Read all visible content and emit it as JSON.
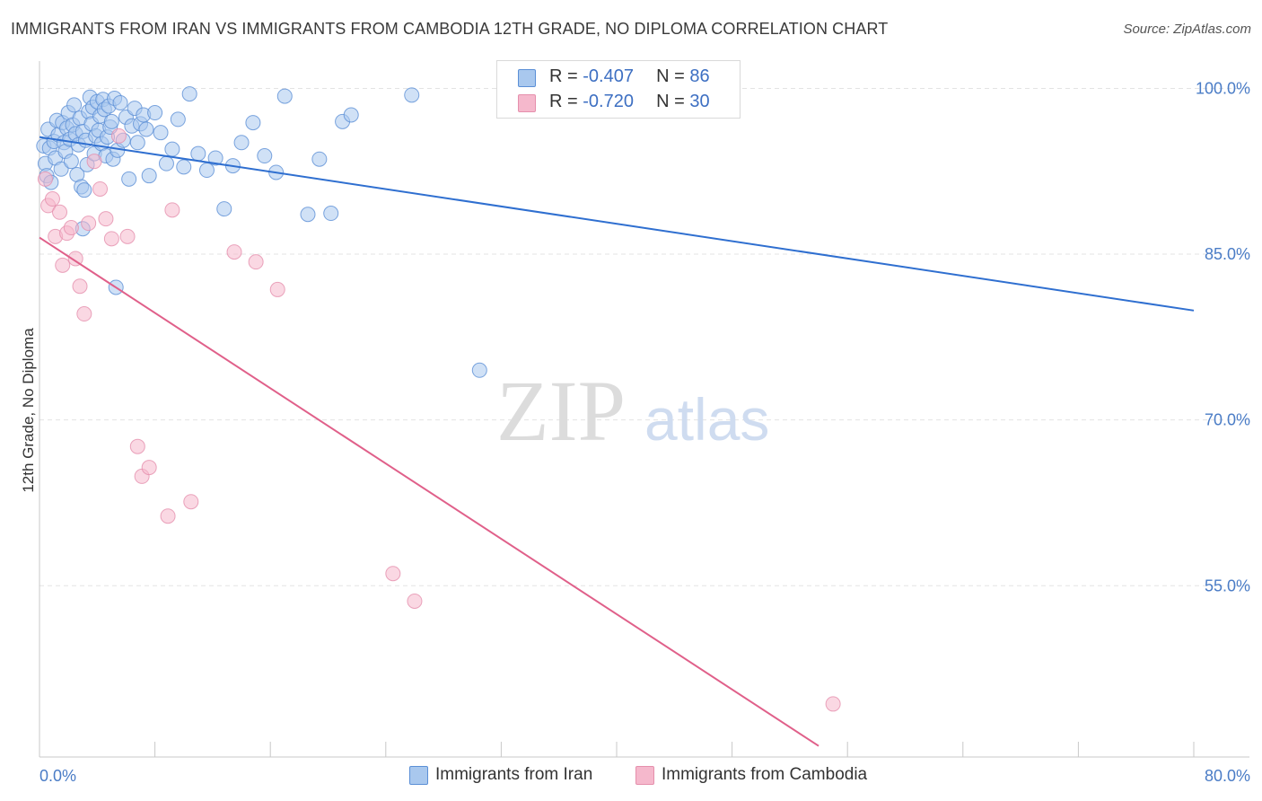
{
  "title": "IMMIGRANTS FROM IRAN VS IMMIGRANTS FROM CAMBODIA 12TH GRADE, NO DIPLOMA CORRELATION CHART",
  "source": "Source: ZipAtlas.com",
  "watermark": {
    "zip": "ZIP",
    "atlas": "atlas"
  },
  "stats": [
    {
      "r_label": "R =",
      "r_value": "-0.407",
      "n_label": "N =",
      "n_value": "86",
      "color": "#a9c8ee"
    },
    {
      "r_label": "R =",
      "r_value": "-0.720",
      "n_label": "N =",
      "n_value": "30",
      "color": "#f5b8cc"
    }
  ],
  "legend": [
    {
      "label": "Immigrants from Iran",
      "color": "#a9c8ee"
    },
    {
      "label": "Immigrants from Cambodia",
      "color": "#f5b8cc"
    }
  ],
  "chart_data": {
    "type": "scatter",
    "title": "IMMIGRANTS FROM IRAN VS IMMIGRANTS FROM CAMBODIA 12TH GRADE, NO DIPLOMA CORRELATION CHART",
    "xlabel": "",
    "ylabel": "12th Grade, No Diploma",
    "xlim": [
      0,
      80
    ],
    "ylim": [
      39.5,
      101.5
    ],
    "x_tick_labels": [
      "0.0%",
      "80.0%"
    ],
    "y_ticks": [
      100,
      85,
      70,
      55
    ],
    "y_tick_labels": [
      "100.0%",
      "85.0%",
      "70.0%",
      "55.0%"
    ],
    "grid": true,
    "legend_position": "bottom",
    "series": [
      {
        "name": "Immigrants from Iran",
        "color": "#a9c8ee",
        "stroke": "#5b8fd6",
        "trend_color": "#2f6fd0",
        "trend": [
          [
            0,
            95.6
          ],
          [
            80,
            79.9
          ]
        ],
        "points": [
          [
            0.3,
            94.8
          ],
          [
            0.4,
            93.2
          ],
          [
            0.5,
            92.1
          ],
          [
            0.6,
            96.3
          ],
          [
            0.7,
            94.6
          ],
          [
            0.8,
            91.5
          ],
          [
            1.0,
            95.2
          ],
          [
            1.1,
            93.7
          ],
          [
            1.2,
            97.1
          ],
          [
            1.3,
            95.8
          ],
          [
            1.5,
            92.7
          ],
          [
            1.6,
            96.9
          ],
          [
            1.7,
            95.1
          ],
          [
            1.8,
            94.3
          ],
          [
            1.9,
            96.4
          ],
          [
            2.0,
            97.8
          ],
          [
            2.1,
            95.4
          ],
          [
            2.2,
            93.4
          ],
          [
            2.3,
            96.7
          ],
          [
            2.4,
            98.5
          ],
          [
            2.5,
            95.9
          ],
          [
            2.6,
            92.2
          ],
          [
            2.7,
            94.9
          ],
          [
            2.8,
            97.3
          ],
          [
            2.9,
            91.1
          ],
          [
            3.0,
            96.1
          ],
          [
            3.1,
            90.8
          ],
          [
            3.2,
            95.3
          ],
          [
            3.3,
            93.1
          ],
          [
            3.4,
            97.9
          ],
          [
            3.5,
            99.2
          ],
          [
            3.6,
            96.8
          ],
          [
            3.7,
            98.3
          ],
          [
            3.8,
            94.1
          ],
          [
            3.9,
            95.7
          ],
          [
            4.0,
            98.8
          ],
          [
            4.1,
            96.2
          ],
          [
            4.2,
            97.5
          ],
          [
            4.3,
            95.0
          ],
          [
            4.4,
            99.0
          ],
          [
            4.5,
            98.1
          ],
          [
            4.6,
            93.9
          ],
          [
            4.7,
            95.6
          ],
          [
            4.8,
            98.4
          ],
          [
            4.9,
            96.5
          ],
          [
            5.0,
            97.0
          ],
          [
            5.1,
            93.6
          ],
          [
            5.2,
            99.1
          ],
          [
            5.4,
            94.4
          ],
          [
            5.6,
            98.7
          ],
          [
            5.8,
            95.3
          ],
          [
            6.0,
            97.4
          ],
          [
            6.2,
            91.8
          ],
          [
            6.4,
            96.6
          ],
          [
            6.6,
            98.2
          ],
          [
            6.8,
            95.1
          ],
          [
            7.0,
            96.8
          ],
          [
            7.2,
            97.6
          ],
          [
            7.4,
            96.3
          ],
          [
            7.6,
            92.1
          ],
          [
            8.0,
            97.8
          ],
          [
            8.4,
            96.0
          ],
          [
            8.8,
            93.2
          ],
          [
            9.2,
            94.5
          ],
          [
            9.6,
            97.2
          ],
          [
            10.0,
            92.9
          ],
          [
            10.4,
            99.5
          ],
          [
            11.0,
            94.1
          ],
          [
            11.6,
            92.6
          ],
          [
            12.2,
            93.7
          ],
          [
            12.8,
            89.1
          ],
          [
            13.4,
            93.0
          ],
          [
            14.0,
            95.1
          ],
          [
            14.8,
            96.9
          ],
          [
            15.6,
            93.9
          ],
          [
            16.4,
            92.4
          ],
          [
            17.0,
            99.3
          ],
          [
            18.6,
            88.6
          ],
          [
            19.4,
            93.6
          ],
          [
            20.2,
            88.7
          ],
          [
            21.0,
            97.0
          ],
          [
            21.6,
            97.6
          ],
          [
            25.8,
            99.4
          ],
          [
            30.5,
            74.5
          ],
          [
            3.0,
            87.3
          ],
          [
            5.3,
            82.0
          ]
        ]
      },
      {
        "name": "Immigrants from Cambodia",
        "color": "#f5b8cc",
        "stroke": "#e58fac",
        "trend_color": "#e0608a",
        "trend": [
          [
            0,
            86.5
          ],
          [
            54,
            40.5
          ]
        ],
        "points": [
          [
            0.4,
            91.8
          ],
          [
            0.6,
            89.4
          ],
          [
            0.9,
            90.0
          ],
          [
            1.1,
            86.6
          ],
          [
            1.4,
            88.8
          ],
          [
            1.6,
            84.0
          ],
          [
            1.9,
            86.9
          ],
          [
            2.2,
            87.4
          ],
          [
            2.5,
            84.6
          ],
          [
            2.8,
            82.1
          ],
          [
            3.1,
            79.6
          ],
          [
            3.4,
            87.8
          ],
          [
            3.8,
            93.4
          ],
          [
            4.2,
            90.9
          ],
          [
            4.6,
            88.2
          ],
          [
            5.0,
            86.4
          ],
          [
            5.5,
            95.7
          ],
          [
            6.1,
            86.6
          ],
          [
            6.8,
            67.6
          ],
          [
            7.1,
            64.9
          ],
          [
            7.6,
            65.7
          ],
          [
            8.9,
            61.3
          ],
          [
            9.2,
            89.0
          ],
          [
            10.5,
            62.6
          ],
          [
            13.5,
            85.2
          ],
          [
            15.0,
            84.3
          ],
          [
            16.5,
            81.8
          ],
          [
            24.5,
            56.1
          ],
          [
            26.0,
            53.6
          ],
          [
            55.0,
            44.3
          ]
        ]
      }
    ]
  }
}
